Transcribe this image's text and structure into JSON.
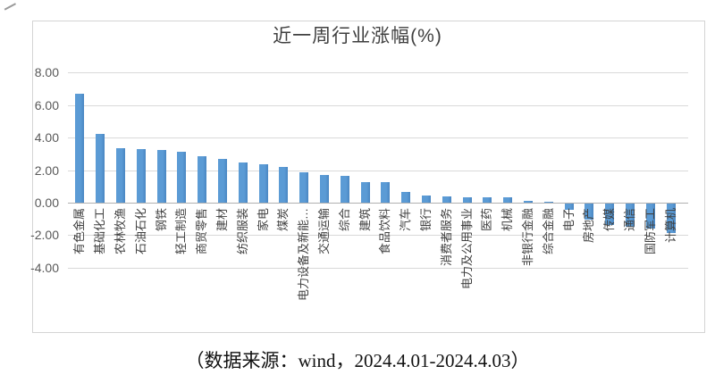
{
  "chart_data": {
    "type": "bar",
    "title": "近一周行业涨幅(%)",
    "xlabel": "",
    "ylabel": "",
    "ylim": [
      -4,
      8
    ],
    "grid": true,
    "legend": false,
    "bar_color": "#5b9bd5",
    "bar_edge_color": "#4a86c2",
    "gridline_color": "#d9d9d9",
    "axis_line_color": "#b0b0b0",
    "yticks": [
      {
        "label": "8.00",
        "value": 8
      },
      {
        "label": "6.00",
        "value": 6
      },
      {
        "label": "4.00",
        "value": 4
      },
      {
        "label": "2.00",
        "value": 2
      },
      {
        "label": "0.00",
        "value": 0
      },
      {
        "label": "-2.00",
        "value": -2
      },
      {
        "label": "-4.00",
        "value": -4
      }
    ],
    "categories": [
      "有色金属",
      "基础化工",
      "农林牧渔",
      "石油石化",
      "钢铁",
      "轻工制造",
      "商贸零售",
      "建材",
      "纺织服装",
      "家电",
      "煤炭",
      "电力设备及新能…",
      "交通运输",
      "综合",
      "建筑",
      "食品饮料",
      "汽车",
      "银行",
      "消费者服务",
      "电力及公用事业",
      "医药",
      "机械",
      "非银行金融",
      "综合金融",
      "电子",
      "房地产",
      "传媒",
      "通信",
      "国防军工",
      "计算机"
    ],
    "values": [
      6.68,
      4.21,
      3.35,
      3.28,
      3.22,
      3.13,
      2.86,
      2.68,
      2.48,
      2.36,
      2.22,
      1.88,
      1.7,
      1.64,
      1.26,
      1.24,
      0.68,
      0.46,
      0.36,
      0.35,
      0.34,
      0.32,
      0.12,
      0.04,
      -0.4,
      -0.97,
      -1.33,
      -1.43,
      -1.52,
      -1.8
    ]
  },
  "footer": {
    "source_note": "（数据来源：wind，2024.4.01-2024.4.03）"
  }
}
